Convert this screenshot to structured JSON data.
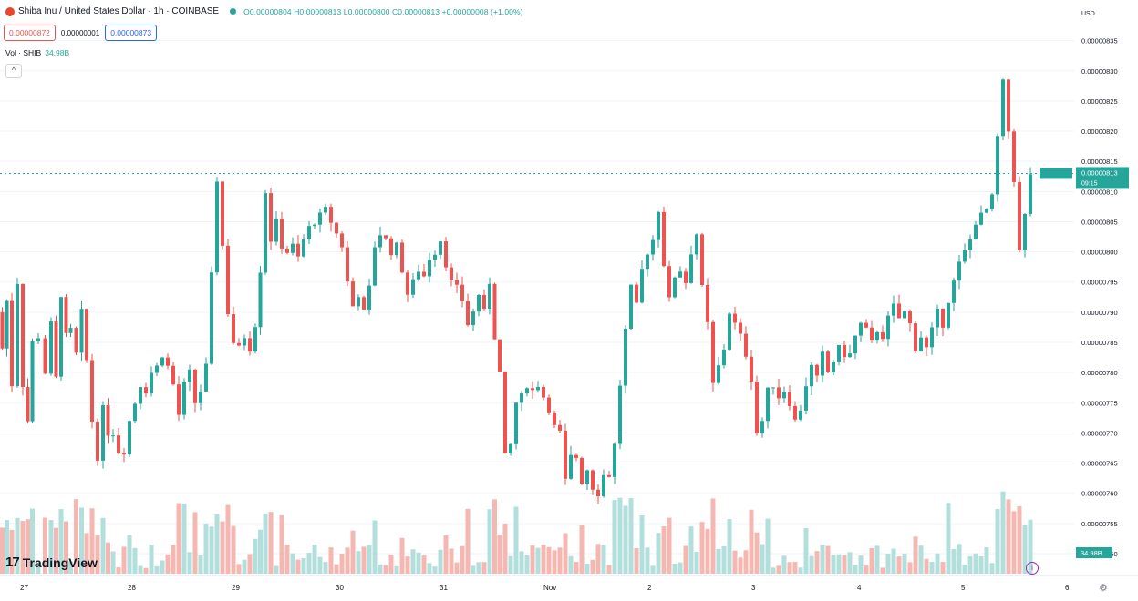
{
  "header": {
    "symbol": "Shiba Inu / United States Dollar · 1h · COINBASE",
    "ohlc": "O0.00000804 H0.00000813 L0.00000800 C0.00000813 +0.00000008 (+1.00%)"
  },
  "prices": {
    "sell": "0.00000872",
    "mid": "0.00000001",
    "buy": "0.00000873"
  },
  "volume": {
    "label": "Vol · SHIB",
    "value": "34.98B"
  },
  "colors": {
    "up": "#26a69a",
    "down": "#ef5350",
    "up_vol": "#b2dfdb",
    "down_vol": "#f5b7b1",
    "grid": "#f0f3fa",
    "accent_purple": "#9c27b0"
  },
  "branding": {
    "name": "TradingView"
  },
  "chart_data": {
    "type": "candlestick",
    "currency": "USD",
    "x_labels": [
      "27",
      "28",
      "29",
      "30",
      "31",
      "Nov",
      "2",
      "3",
      "4",
      "5",
      "6"
    ],
    "y_tick_labels": [
      "0.00000835",
      "0.00000830",
      "0.00000825",
      "0.00000820",
      "0.00000815",
      "0.00000810",
      "0.00000805",
      "0.00000800",
      "0.00000795",
      "0.00000790",
      "0.00000785",
      "0.00000780",
      "0.00000775",
      "0.00000770",
      "0.00000765",
      "0.00000760",
      "0.00000755",
      "0.00000750"
    ],
    "y_range": [
      7.5e-06,
      8.36e-06
    ],
    "last_price_label": "0.00000813",
    "countdown": "09:15",
    "last_volume_label": "34.98B",
    "close_path": [
      [
        0,
        7.9e-06
      ],
      [
        5,
        7.84e-06
      ],
      [
        10,
        7.92e-06
      ],
      [
        16,
        7.78e-06
      ],
      [
        22,
        7.95e-06
      ],
      [
        28,
        7.78e-06
      ],
      [
        33,
        7.72e-06
      ],
      [
        38,
        7.85e-06
      ],
      [
        46,
        7.86e-06
      ],
      [
        53,
        7.8e-06
      ],
      [
        59,
        7.88e-06
      ],
      [
        64,
        7.79e-06
      ],
      [
        70,
        7.93e-06
      ],
      [
        75,
        7.86e-06
      ],
      [
        80,
        7.87e-06
      ],
      [
        87,
        7.83e-06
      ],
      [
        92,
        7.9e-06
      ],
      [
        98,
        7.82e-06
      ],
      [
        104,
        7.72e-06
      ],
      [
        110,
        7.66e-06
      ],
      [
        116,
        7.74e-06
      ],
      [
        121,
        7.7e-06
      ],
      [
        127,
        7.7e-06
      ],
      [
        133,
        7.67e-06
      ],
      [
        139,
        7.67e-06
      ],
      [
        145,
        7.72e-06
      ],
      [
        151,
        7.75e-06
      ],
      [
        157,
        7.78e-06
      ],
      [
        163,
        7.77e-06
      ],
      [
        169,
        7.8e-06
      ],
      [
        175,
        7.81e-06
      ],
      [
        181,
        7.83e-06
      ],
      [
        187,
        7.81e-06
      ],
      [
        193,
        7.78e-06
      ],
      [
        199,
        7.73e-06
      ],
      [
        205,
        7.78e-06
      ],
      [
        211,
        7.8e-06
      ],
      [
        217,
        7.75e-06
      ],
      [
        223,
        7.77e-06
      ],
      [
        229,
        7.81e-06
      ],
      [
        235,
        7.96e-06
      ],
      [
        241,
        8.12e-06
      ],
      [
        247,
        8.01e-06
      ],
      [
        253,
        7.9e-06
      ],
      [
        259,
        7.85e-06
      ],
      [
        265,
        7.84e-06
      ],
      [
        271,
        7.86e-06
      ],
      [
        277,
        7.84e-06
      ],
      [
        283,
        7.88e-06
      ],
      [
        288,
        7.97e-06
      ],
      [
        294,
        8.1e-06
      ],
      [
        300,
        8.02e-06
      ],
      [
        306,
        8.05e-06
      ],
      [
        312,
        8.01e-06
      ],
      [
        318,
        8e-06
      ],
      [
        324,
        8.01e-06
      ],
      [
        330,
        7.99e-06
      ],
      [
        336,
        8.02e-06
      ],
      [
        342,
        8.04e-06
      ],
      [
        348,
        8.05e-06
      ],
      [
        354,
        8.06e-06
      ],
      [
        360,
        8.07e-06
      ],
      [
        366,
        8.05e-06
      ],
      [
        372,
        8.03e-06
      ],
      [
        378,
        8.01e-06
      ],
      [
        384,
        7.95e-06
      ],
      [
        390,
        7.91e-06
      ],
      [
        396,
        7.93e-06
      ],
      [
        402,
        7.9e-06
      ],
      [
        408,
        7.94e-06
      ],
      [
        414,
        8.01e-06
      ],
      [
        420,
        8.03e-06
      ],
      [
        426,
        8.02e-06
      ],
      [
        432,
        8e-06
      ],
      [
        438,
        8.01e-06
      ],
      [
        444,
        7.97e-06
      ],
      [
        450,
        7.93e-06
      ],
      [
        456,
        7.95e-06
      ],
      [
        462,
        7.97e-06
      ],
      [
        468,
        7.96e-06
      ],
      [
        474,
        7.99e-06
      ],
      [
        480,
        8e-06
      ],
      [
        486,
        8.02e-06
      ],
      [
        492,
        7.98e-06
      ],
      [
        498,
        7.95e-06
      ],
      [
        504,
        7.94e-06
      ],
      [
        510,
        7.92e-06
      ],
      [
        516,
        7.88e-06
      ],
      [
        522,
        7.9e-06
      ],
      [
        528,
        7.93e-06
      ],
      [
        534,
        7.9e-06
      ],
      [
        540,
        7.95e-06
      ],
      [
        545,
        7.86e-06
      ],
      [
        551,
        7.8e-06
      ],
      [
        557,
        7.66e-06
      ],
      [
        563,
        7.68e-06
      ],
      [
        569,
        7.75e-06
      ],
      [
        575,
        7.76e-06
      ],
      [
        581,
        7.78e-06
      ],
      [
        587,
        7.77e-06
      ],
      [
        593,
        7.78e-06
      ],
      [
        599,
        7.76e-06
      ],
      [
        605,
        7.74e-06
      ],
      [
        611,
        7.71e-06
      ],
      [
        617,
        7.7e-06
      ],
      [
        623,
        7.62e-06
      ],
      [
        629,
        7.66e-06
      ],
      [
        635,
        7.66e-06
      ],
      [
        641,
        7.62e-06
      ],
      [
        647,
        7.64e-06
      ],
      [
        653,
        7.61e-06
      ],
      [
        659,
        7.6e-06
      ],
      [
        665,
        7.63e-06
      ],
      [
        671,
        7.63e-06
      ],
      [
        677,
        7.68e-06
      ],
      [
        683,
        7.78e-06
      ],
      [
        689,
        7.87e-06
      ],
      [
        695,
        7.94e-06
      ],
      [
        701,
        7.91e-06
      ],
      [
        707,
        7.97e-06
      ],
      [
        713,
        8e-06
      ],
      [
        719,
        8.02e-06
      ],
      [
        725,
        8.07e-06
      ],
      [
        731,
        7.98e-06
      ],
      [
        737,
        7.92e-06
      ],
      [
        743,
        7.96e-06
      ],
      [
        749,
        7.97e-06
      ],
      [
        755,
        7.95e-06
      ],
      [
        761,
        8e-06
      ],
      [
        767,
        8.03e-06
      ],
      [
        773,
        7.94e-06
      ],
      [
        779,
        7.88e-06
      ],
      [
        785,
        7.78e-06
      ],
      [
        791,
        7.81e-06
      ],
      [
        797,
        7.84e-06
      ],
      [
        803,
        7.9e-06
      ],
      [
        809,
        7.88e-06
      ],
      [
        815,
        7.86e-06
      ],
      [
        821,
        7.83e-06
      ],
      [
        827,
        7.79e-06
      ],
      [
        833,
        7.7e-06
      ],
      [
        839,
        7.72e-06
      ],
      [
        845,
        7.77e-06
      ],
      [
        851,
        7.78e-06
      ],
      [
        857,
        7.76e-06
      ],
      [
        863,
        7.77e-06
      ],
      [
        869,
        7.75e-06
      ],
      [
        875,
        7.72e-06
      ],
      [
        881,
        7.74e-06
      ],
      [
        887,
        7.78e-06
      ],
      [
        893,
        7.81e-06
      ],
      [
        899,
        7.79e-06
      ],
      [
        905,
        7.83e-06
      ],
      [
        911,
        7.8e-06
      ],
      [
        917,
        7.82e-06
      ],
      [
        923,
        7.84e-06
      ],
      [
        929,
        7.83e-06
      ],
      [
        935,
        7.83e-06
      ],
      [
        941,
        7.86e-06
      ],
      [
        947,
        7.88e-06
      ],
      [
        953,
        7.87e-06
      ],
      [
        959,
        7.85e-06
      ],
      [
        965,
        7.87e-06
      ],
      [
        971,
        7.86e-06
      ],
      [
        977,
        7.89e-06
      ],
      [
        983,
        7.91e-06
      ],
      [
        989,
        7.89e-06
      ],
      [
        995,
        7.9e-06
      ],
      [
        1001,
        7.88e-06
      ],
      [
        1007,
        7.84e-06
      ],
      [
        1013,
        7.86e-06
      ],
      [
        1019,
        7.84e-06
      ],
      [
        1025,
        7.87e-06
      ],
      [
        1031,
        7.9e-06
      ],
      [
        1037,
        7.88e-06
      ],
      [
        1043,
        7.92e-06
      ],
      [
        1049,
        7.95e-06
      ],
      [
        1055,
        7.98e-06
      ],
      [
        1061,
        8e-06
      ],
      [
        1067,
        8.02e-06
      ],
      [
        1073,
        8.05e-06
      ],
      [
        1079,
        8.06e-06
      ],
      [
        1085,
        8.07e-06
      ],
      [
        1091,
        8.09e-06
      ],
      [
        1097,
        8.19e-06
      ],
      [
        1103,
        8.28e-06
      ],
      [
        1109,
        8.2e-06
      ],
      [
        1115,
        8.12e-06
      ],
      [
        1121,
        8e-06
      ],
      [
        1127,
        8.06e-06
      ],
      [
        1133,
        8.13e-06
      ]
    ]
  }
}
